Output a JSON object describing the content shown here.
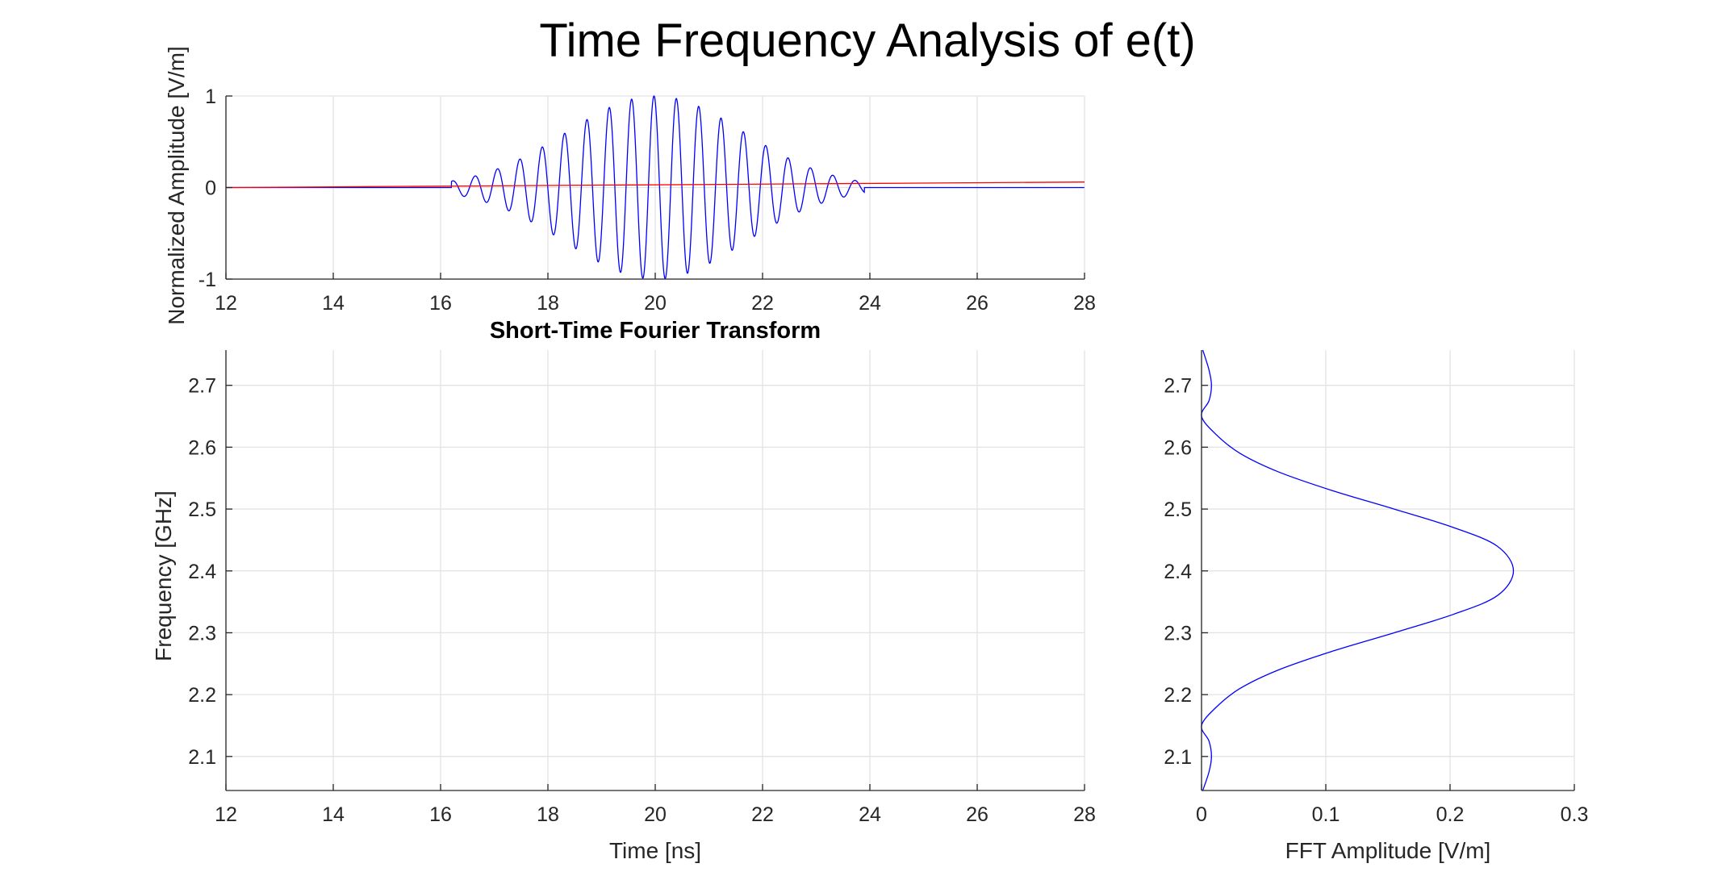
{
  "figure": {
    "title": "Time Frequency Analysis of e(t)"
  },
  "chart_data": [
    {
      "type": "line",
      "panel": "time-signal",
      "title": "",
      "xlabel": "",
      "ylabel": "Normalized Amplitude [V/m]",
      "xlim": [
        12,
        28
      ],
      "ylim": [
        -1,
        1
      ],
      "xticks": [
        "12",
        "14",
        "16",
        "18",
        "20",
        "22",
        "24",
        "26",
        "28"
      ],
      "yticks": [
        "-1",
        "0",
        "1"
      ],
      "grid": true,
      "series": [
        {
          "color": "#0000ff",
          "style": "gaussian-modulated sinusoid",
          "envelope": {
            "center": 20,
            "peak": 1.0,
            "start": 16.2,
            "end": 23.9
          },
          "carrier_frequency_ghz": 2.4,
          "points": [
            [
              12,
              0
            ],
            [
              16.0,
              0
            ],
            [
              16.66,
              0.06
            ],
            [
              17.08,
              0.17
            ],
            [
              17.5,
              0.3
            ],
            [
              17.91,
              0.44
            ],
            [
              18.33,
              0.6
            ],
            [
              18.75,
              0.74
            ],
            [
              19.16,
              0.86
            ],
            [
              19.58,
              0.96
            ],
            [
              20.0,
              0.99
            ],
            [
              20.41,
              0.97
            ],
            [
              20.83,
              0.9
            ],
            [
              21.25,
              0.78
            ],
            [
              21.66,
              0.63
            ],
            [
              22.08,
              0.47
            ],
            [
              22.5,
              0.33
            ],
            [
              22.91,
              0.2
            ],
            [
              23.33,
              0.09
            ],
            [
              24.0,
              0
            ],
            [
              28,
              0
            ]
          ]
        },
        {
          "color": "#ff0000",
          "style": "linear",
          "points": [
            [
              12,
              0
            ],
            [
              28,
              0.06
            ]
          ]
        }
      ]
    },
    {
      "type": "heatmap",
      "panel": "stft",
      "title": "Short-Time Fourier Transform",
      "xlabel": "Time [ns]",
      "ylabel": "Frequency [GHz]",
      "xlim": [
        12,
        28
      ],
      "ylim": [
        2.045,
        2.757
      ],
      "xticks": [
        "12",
        "14",
        "16",
        "18",
        "20",
        "22",
        "24",
        "26",
        "28"
      ],
      "yticks": [
        "2.1",
        "2.2",
        "2.3",
        "2.4",
        "2.5",
        "2.6",
        "2.7"
      ],
      "grid": true,
      "values": []
    },
    {
      "type": "line",
      "panel": "fft-spectrum",
      "title": "",
      "xlabel": "FFT Amplitude [V/m]",
      "ylabel": "",
      "xlim": [
        0,
        0.3
      ],
      "ylim": [
        2.045,
        2.757
      ],
      "xticks": [
        "0",
        "0.1",
        "0.2",
        "0.3"
      ],
      "yticks": [
        "2.1",
        "2.2",
        "2.3",
        "2.4",
        "2.5",
        "2.6",
        "2.7"
      ],
      "grid": true,
      "series": [
        {
          "color": "#0000ff",
          "points": [
            [
              0.001,
              2.045
            ],
            [
              0.006,
              2.075
            ],
            [
              0.008,
              2.1
            ],
            [
              0.006,
              2.125
            ],
            [
              0.0,
              2.15
            ],
            [
              0.012,
              2.18
            ],
            [
              0.031,
              2.21
            ],
            [
              0.062,
              2.24
            ],
            [
              0.105,
              2.27
            ],
            [
              0.155,
              2.3
            ],
            [
              0.203,
              2.33
            ],
            [
              0.238,
              2.36
            ],
            [
              0.251,
              2.4
            ],
            [
              0.238,
              2.44
            ],
            [
              0.203,
              2.47
            ],
            [
              0.155,
              2.5
            ],
            [
              0.105,
              2.53
            ],
            [
              0.062,
              2.56
            ],
            [
              0.031,
              2.59
            ],
            [
              0.012,
              2.62
            ],
            [
              0.0,
              2.65
            ],
            [
              0.006,
              2.675
            ],
            [
              0.008,
              2.7
            ],
            [
              0.006,
              2.725
            ],
            [
              0.001,
              2.757
            ]
          ]
        }
      ]
    }
  ]
}
